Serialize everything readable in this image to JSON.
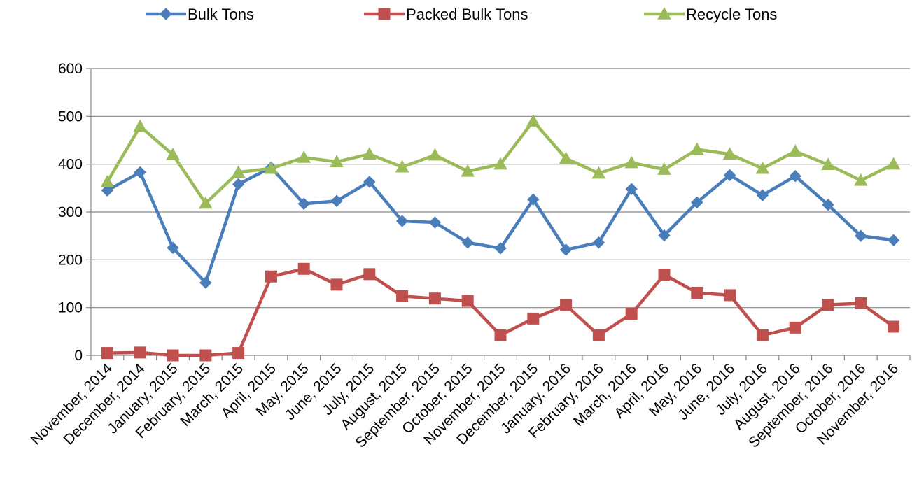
{
  "chart_data": {
    "type": "line",
    "title": "",
    "xlabel": "",
    "ylabel": "",
    "ylim": [
      0,
      600
    ],
    "yticks": [
      0,
      100,
      200,
      300,
      400,
      500,
      600
    ],
    "grid": "horizontal",
    "legend_position": "top",
    "categories": [
      "November, 2014",
      "December, 2014",
      "January, 2015",
      "February, 2015",
      "March, 2015",
      "April, 2015",
      "May, 2015",
      "June, 2015",
      "July, 2015",
      "August, 2015",
      "September, 2015",
      "October, 2015",
      "November, 2015",
      "December, 2015",
      "January, 2016",
      "February, 2016",
      "March, 2016",
      "April, 2016",
      "May, 2016",
      "June, 2016",
      "July, 2016",
      "August, 2016",
      "September, 2016",
      "October, 2016",
      "November, 2016"
    ],
    "series": [
      {
        "name": "Bulk Tons",
        "color": "#4a7ebb",
        "marker": "diamond",
        "values": [
          345,
          383,
          225,
          152,
          358,
          393,
          317,
          323,
          363,
          281,
          278,
          236,
          224,
          326,
          221,
          236,
          348,
          251,
          320,
          377,
          335,
          375,
          315,
          250,
          241
        ]
      },
      {
        "name": "Packed Bulk Tons",
        "color": "#c0504d",
        "marker": "square",
        "values": [
          5,
          6,
          0,
          0,
          5,
          165,
          181,
          148,
          170,
          124,
          119,
          114,
          42,
          77,
          105,
          42,
          87,
          169,
          131,
          126,
          42,
          58,
          106,
          109,
          60
        ]
      },
      {
        "name": "Recycle Tons",
        "color": "#9bbb59",
        "marker": "triangle",
        "values": [
          363,
          479,
          420,
          318,
          383,
          391,
          414,
          405,
          421,
          394,
          419,
          385,
          400,
          490,
          412,
          381,
          403,
          389,
          431,
          421,
          391,
          427,
          399,
          366,
          400
        ]
      }
    ]
  }
}
